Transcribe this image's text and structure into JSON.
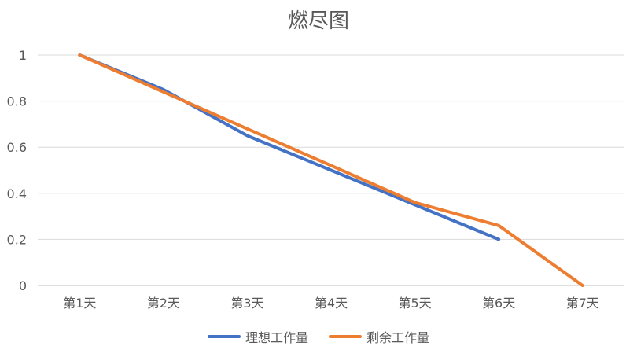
{
  "chart_data": {
    "type": "line",
    "title": "燃尽图",
    "categories": [
      "第1天",
      "第2天",
      "第3天",
      "第4天",
      "第5天",
      "第6天",
      "第7天"
    ],
    "ylim": [
      0,
      1
    ],
    "yticks": [
      "0",
      "0.2",
      "0.4",
      "0.6",
      "0.8",
      "1"
    ],
    "grid": true,
    "legend_position": "bottom",
    "series": [
      {
        "name": "理想工作量",
        "color": "#4472C4",
        "values": [
          1.0,
          0.85,
          0.65,
          0.5,
          0.35,
          0.2,
          null
        ]
      },
      {
        "name": "剩余工作量",
        "color": "#ED7D31",
        "values": [
          1.0,
          0.84,
          0.68,
          0.52,
          0.36,
          0.26,
          0.0
        ]
      }
    ]
  }
}
